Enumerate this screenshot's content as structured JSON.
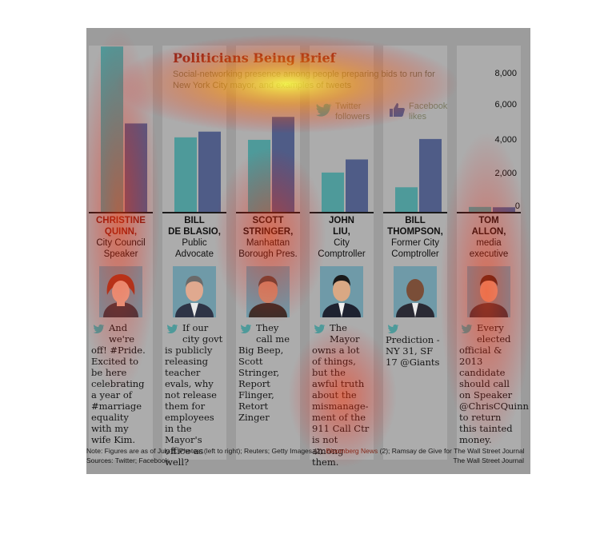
{
  "chart_data": {
    "type": "bar",
    "title": "Politicians Being Brief",
    "subtitle": "Social-networking presence among people preparing bids to run for New York City mayor, and examples of tweets",
    "categories": [
      "Christine Quinn",
      "Bill de Blasio",
      "Scott Stringer",
      "John Liu",
      "Bill Thompson",
      "Tom Allon"
    ],
    "series": [
      {
        "name": "Twitter followers",
        "values": [
          10100,
          4550,
          4400,
          2400,
          1500,
          300
        ]
      },
      {
        "name": "Facebook likes",
        "values": [
          5400,
          4900,
          5800,
          3200,
          4450,
          280
        ]
      }
    ],
    "ylim": [
      0,
      10500
    ],
    "yticks": [
      "8,000",
      "6,000",
      "4,000",
      "2,000",
      "0"
    ],
    "colors": {
      "twitter": "#4e9a9a",
      "facebook": "#4f5c87",
      "background": "#9c9c9c",
      "column": "#acacac",
      "title": "#8a2a1e"
    }
  },
  "legend": {
    "twitter": {
      "label": "Twitter followers",
      "icon": "twitter-bird-icon"
    },
    "facebook": {
      "label": "Facebook likes",
      "icon": "thumbs-up-icon"
    }
  },
  "politicians": [
    {
      "name_line1": "CHRISTINE",
      "name_line2": "QUINN,",
      "role_line1": "City Council",
      "role_line2": "Speaker",
      "tweet": "And we're off! #Pride. Excited to be here celebrating a year of #marriage equality with my wife Kim."
    },
    {
      "name_line1": "BILL",
      "name_line2": "DE BLASIO,",
      "role_line1": "Public",
      "role_line2": "Advocate",
      "tweet": "If our city govt is publicly releasing teacher evals, why not release them for employees in the Mayor's office as well?"
    },
    {
      "name_line1": "SCOTT",
      "name_line2": "STRINGER,",
      "role_line1": "Manhattan",
      "role_line2": "Borough Pres.",
      "tweet": "They call me Big Beep, Scott Stringer, Report Flinger, Retort Zinger"
    },
    {
      "name_line1": "JOHN",
      "name_line2": "LIU,",
      "role_line1": "City",
      "role_line2": "Comptroller",
      "tweet": "The Mayor owns a lot of things, but the awful truth about the mismanage-ment of the 911 Call Ctr is not among them."
    },
    {
      "name_line1": "BILL",
      "name_line2": "THOMPSON,",
      "role_line1": "Former City",
      "role_line2": "Comptroller",
      "tweet": "Prediction - NY 31, SF 17 @Giants"
    },
    {
      "name_line1": "TOM",
      "name_line2": "ALLON,",
      "role_line1": "media",
      "role_line2": "executive",
      "tweet": "Every elected official & 2013 candidate should call on Speaker @ChrisCQuinn to return this tainted money."
    }
  ],
  "footer": {
    "note_prefix": "Note: Figures are as of July 8.  Photos: (left to right); Reuters; Getty Images (2);",
    "note_highlight": "Bloomberg News",
    "note_suffix": "(2); Ramsay de Give for The Wall Street Journal",
    "sources": "Sources: Twitter; Facebook",
    "credit": "The Wall Street Journal"
  }
}
